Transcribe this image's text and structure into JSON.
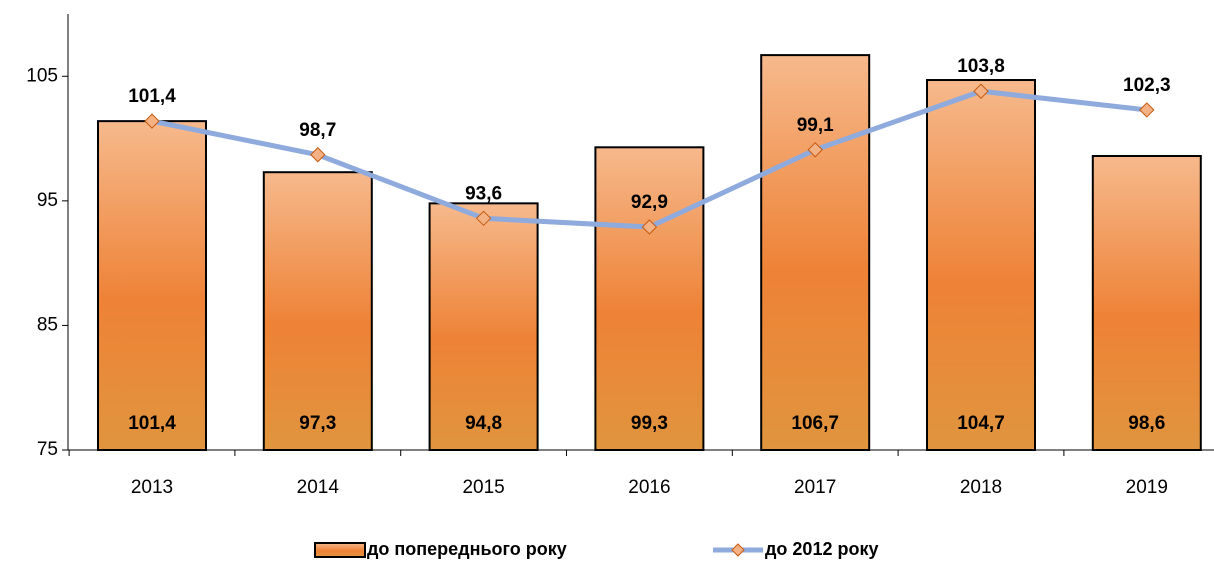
{
  "chart_data": {
    "type": "bar-line",
    "categories": [
      "2013",
      "2014",
      "2015",
      "2016",
      "2017",
      "2018",
      "2019"
    ],
    "series": [
      {
        "name": "до попереднього року",
        "type": "bar",
        "color": "#ed7d31",
        "values": [
          101.4,
          97.3,
          94.8,
          99.3,
          106.7,
          104.7,
          98.6
        ],
        "value_labels": [
          "101,4",
          "97,3",
          "94,8",
          "99,3",
          "106,7",
          "104,7",
          "98,6"
        ]
      },
      {
        "name": "до 2012 року",
        "type": "line",
        "color": "#8faadc",
        "marker_color": "#f4b183",
        "values": [
          101.4,
          98.7,
          93.6,
          92.9,
          99.1,
          103.8,
          102.3
        ],
        "value_labels": [
          "101,4",
          "98,7",
          "93,6",
          "92,9",
          "99,1",
          "103,8",
          "102,3"
        ]
      }
    ],
    "ylim": [
      75,
      110
    ],
    "yticks": [
      75,
      85,
      95,
      105
    ],
    "legend": "bottom"
  }
}
